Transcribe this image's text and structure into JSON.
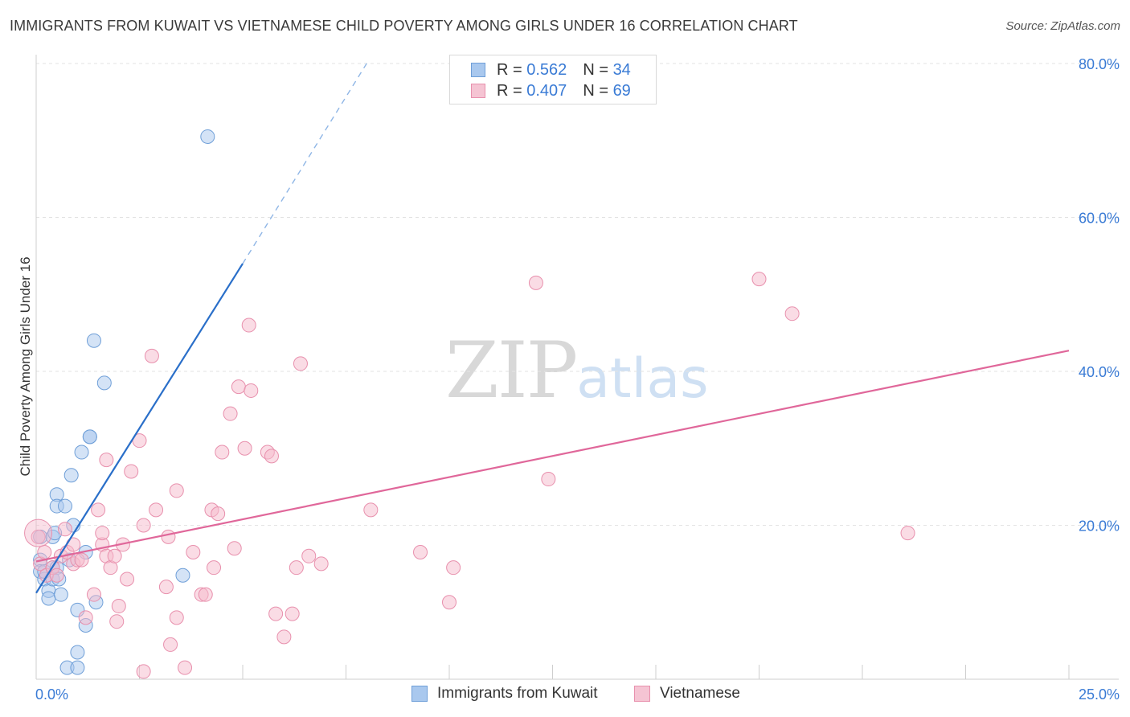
{
  "header": {
    "title": "IMMIGRANTS FROM KUWAIT VS VIETNAMESE CHILD POVERTY AMONG GIRLS UNDER 16 CORRELATION CHART",
    "source": "Source: ZipAtlas.com"
  },
  "watermark": {
    "zip": "ZIP",
    "atlas": "atlas"
  },
  "legend": {
    "r_label": "R =",
    "n_label": "N =",
    "series": [
      {
        "r": "0.562",
        "n": "34"
      },
      {
        "r": "0.407",
        "n": "69"
      }
    ]
  },
  "bottom_legend": {
    "items": [
      "Immigrants from Kuwait",
      "Vietnamese"
    ]
  },
  "colors": {
    "blue_fill": "#a9c8ee",
    "blue_stroke": "#6f9fd8",
    "blue_line": "#2a6fc9",
    "pink_fill": "#f5b9cb",
    "pink_stroke": "#e890ad",
    "pink_line": "#e0679a",
    "grid": "#e3e3e3",
    "axis_text": "#3a7bd5"
  },
  "chart_data": {
    "type": "scatter",
    "title": "IMMIGRANTS FROM KUWAIT VS VIETNAMESE CHILD POVERTY AMONG GIRLS UNDER 16 CORRELATION CHART",
    "xlabel": "",
    "ylabel": "Child Poverty Among Girls Under 16",
    "xlim": [
      0,
      25
    ],
    "ylim": [
      0,
      80
    ],
    "x_tick_labels": [
      "0.0%",
      "25.0%"
    ],
    "y_ticks": [
      20,
      40,
      60,
      80
    ],
    "y_tick_labels": [
      "20.0%",
      "40.0%",
      "60.0%",
      "80.0%"
    ],
    "grid": true,
    "series": [
      {
        "name": "Immigrants from Kuwait",
        "color": "blue",
        "trend": {
          "x0": 0.0,
          "y0": 11.2,
          "x1": 5.0,
          "y1": 54.0,
          "dash_to_x": 8.0,
          "dash_to_y": 80.0
        },
        "points": [
          [
            0.1,
            18.5
          ],
          [
            0.1,
            15.5
          ],
          [
            0.1,
            14.0
          ],
          [
            0.2,
            13.0
          ],
          [
            0.2,
            14.0
          ],
          [
            0.3,
            11.5
          ],
          [
            0.3,
            10.5
          ],
          [
            0.4,
            13.0
          ],
          [
            0.4,
            18.5
          ],
          [
            0.4,
            14.5
          ],
          [
            0.45,
            19.0
          ],
          [
            0.5,
            24.0
          ],
          [
            0.5,
            22.5
          ],
          [
            0.5,
            14.5
          ],
          [
            0.55,
            13.0
          ],
          [
            0.6,
            11.0
          ],
          [
            0.7,
            22.5
          ],
          [
            0.75,
            1.5
          ],
          [
            0.8,
            15.5
          ],
          [
            0.85,
            26.5
          ],
          [
            0.9,
            20.0
          ],
          [
            1.0,
            3.5
          ],
          [
            1.0,
            1.5
          ],
          [
            1.0,
            9.0
          ],
          [
            1.1,
            29.5
          ],
          [
            1.2,
            16.5
          ],
          [
            1.2,
            7.0
          ],
          [
            1.3,
            31.5
          ],
          [
            1.3,
            31.5
          ],
          [
            1.4,
            44.0
          ],
          [
            1.45,
            10.0
          ],
          [
            1.65,
            38.5
          ],
          [
            3.55,
            13.5
          ],
          [
            4.15,
            70.5
          ]
        ]
      },
      {
        "name": "Vietnamese",
        "color": "pink",
        "trend": {
          "x0": 0.0,
          "y0": 15.3,
          "x1": 25.0,
          "y1": 42.7
        },
        "points": [
          [
            0.05,
            18.5
          ],
          [
            0.1,
            15.0
          ],
          [
            0.2,
            16.5
          ],
          [
            0.25,
            13.5
          ],
          [
            0.4,
            14.5
          ],
          [
            0.5,
            13.5
          ],
          [
            0.6,
            16.0
          ],
          [
            0.7,
            19.5
          ],
          [
            0.75,
            16.5
          ],
          [
            0.9,
            17.5
          ],
          [
            0.9,
            15.0
          ],
          [
            1.0,
            15.5
          ],
          [
            1.1,
            15.5
          ],
          [
            1.2,
            8.0
          ],
          [
            1.4,
            11.0
          ],
          [
            1.5,
            22.0
          ],
          [
            1.6,
            17.5
          ],
          [
            1.6,
            19.0
          ],
          [
            1.7,
            16.0
          ],
          [
            1.7,
            28.5
          ],
          [
            1.8,
            14.5
          ],
          [
            1.9,
            16.0
          ],
          [
            1.95,
            7.5
          ],
          [
            2.0,
            9.5
          ],
          [
            2.1,
            17.5
          ],
          [
            2.2,
            13.0
          ],
          [
            2.3,
            27.0
          ],
          [
            2.5,
            31.0
          ],
          [
            2.6,
            20.0
          ],
          [
            2.6,
            1.0
          ],
          [
            2.8,
            42.0
          ],
          [
            2.9,
            22.0
          ],
          [
            3.15,
            12.0
          ],
          [
            3.2,
            18.5
          ],
          [
            3.25,
            4.5
          ],
          [
            3.4,
            24.5
          ],
          [
            3.4,
            8.0
          ],
          [
            3.6,
            1.5
          ],
          [
            3.8,
            16.5
          ],
          [
            4.0,
            11.0
          ],
          [
            4.1,
            11.0
          ],
          [
            4.25,
            22.0
          ],
          [
            4.3,
            14.5
          ],
          [
            4.4,
            21.5
          ],
          [
            4.5,
            29.5
          ],
          [
            4.7,
            34.5
          ],
          [
            4.8,
            17.0
          ],
          [
            4.9,
            38.0
          ],
          [
            5.05,
            30.0
          ],
          [
            5.15,
            46.0
          ],
          [
            5.2,
            37.5
          ],
          [
            5.6,
            29.5
          ],
          [
            5.7,
            29.0
          ],
          [
            5.8,
            8.5
          ],
          [
            6.0,
            5.5
          ],
          [
            6.2,
            8.5
          ],
          [
            6.3,
            14.5
          ],
          [
            6.4,
            41.0
          ],
          [
            6.6,
            16.0
          ],
          [
            6.9,
            15.0
          ],
          [
            8.1,
            22.0
          ],
          [
            9.3,
            16.5
          ],
          [
            10.0,
            10.0
          ],
          [
            10.1,
            14.5
          ],
          [
            12.1,
            51.5
          ],
          [
            12.4,
            26.0
          ],
          [
            17.5,
            52.0
          ],
          [
            18.3,
            47.5
          ],
          [
            21.1,
            19.0
          ]
        ]
      }
    ]
  }
}
